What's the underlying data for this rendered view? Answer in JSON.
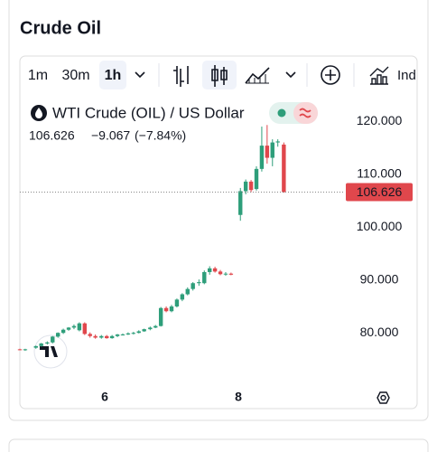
{
  "header": {
    "title": "Crude Oil"
  },
  "toolbar": {
    "intervals": [
      "1m",
      "30m",
      "1h"
    ],
    "active_interval": 2,
    "indicators": "Ind"
  },
  "chart_data": {
    "type": "candlestick",
    "title": "WTI Crude (OIL) / US Dollar",
    "last_price": 106.626,
    "change": "−9.067",
    "change_percent": "(−7.84%)",
    "x": [
      4.73,
      4.81,
      4.97,
      5.05,
      5.14,
      5.22,
      5.3,
      5.38,
      5.46,
      5.54,
      5.62,
      5.7,
      5.78,
      5.86,
      5.95,
      6.03,
      6.11,
      6.19,
      6.27,
      6.35,
      6.43,
      6.51,
      6.59,
      6.68,
      6.76,
      6.84,
      6.92,
      7.0,
      7.08,
      7.16,
      7.24,
      7.32,
      7.41,
      7.49,
      7.57,
      7.65,
      7.73,
      7.81,
      7.89,
      8.03,
      8.11,
      8.19,
      8.27,
      8.35,
      8.43,
      8.51,
      8.59,
      8.68
    ],
    "open": [
      76.9,
      76.8,
      77.2,
      77.5,
      78.0,
      78.2,
      79.3,
      80.0,
      80.6,
      81.0,
      80.5,
      81.8,
      79.8,
      79.4,
      79.1,
      79.4,
      79.0,
      79.4,
      79.7,
      79.7,
      79.9,
      80.0,
      80.3,
      80.7,
      81.0,
      81.3,
      84.7,
      84.1,
      85.0,
      86.3,
      87.3,
      88.3,
      89.4,
      89.4,
      91.5,
      92.2,
      91.6,
      91.1,
      91.2,
      102.3,
      106.8,
      108.6,
      107.2,
      111.0,
      115.4,
      113.1,
      116.0,
      115.6
    ],
    "high": [
      77.0,
      77.0,
      77.6,
      78.1,
      78.4,
      79.4,
      80.1,
      80.8,
      81.1,
      81.6,
      82.0,
      82.0,
      80.1,
      79.7,
      79.6,
      79.6,
      79.6,
      79.8,
      79.9,
      80.1,
      80.2,
      80.5,
      80.8,
      81.2,
      81.5,
      84.9,
      85.0,
      85.3,
      86.5,
      87.5,
      88.6,
      89.6,
      90.1,
      91.8,
      92.6,
      92.5,
      91.9,
      91.5,
      91.4,
      107.4,
      109.0,
      108.9,
      111.5,
      119.0,
      119.3,
      116.6,
      116.6,
      116.0
    ],
    "low": [
      76.7,
      76.6,
      77.0,
      77.4,
      77.8,
      78.0,
      79.1,
      79.8,
      80.4,
      80.7,
      80.3,
      79.6,
      79.1,
      78.9,
      78.9,
      78.9,
      78.9,
      79.2,
      79.5,
      79.6,
      79.7,
      79.9,
      80.2,
      80.5,
      80.9,
      81.2,
      83.9,
      83.9,
      84.8,
      86.0,
      87.1,
      88.0,
      88.9,
      89.2,
      91.0,
      91.4,
      90.9,
      90.8,
      90.9,
      101.2,
      106.2,
      106.6,
      106.9,
      110.5,
      112.0,
      111.5,
      115.2,
      106.5
    ],
    "close": [
      76.8,
      76.9,
      77.5,
      78.0,
      78.2,
      79.3,
      80.0,
      80.6,
      81.0,
      81.3,
      81.8,
      79.8,
      79.4,
      79.1,
      79.4,
      79.0,
      79.4,
      79.7,
      79.7,
      79.9,
      80.0,
      80.3,
      80.7,
      81.0,
      81.3,
      84.7,
      84.1,
      85.0,
      86.3,
      87.3,
      88.3,
      89.4,
      89.6,
      91.5,
      92.2,
      91.6,
      91.1,
      91.2,
      91.0,
      106.8,
      108.6,
      107.0,
      111.0,
      115.4,
      113.1,
      116.0,
      116.2,
      106.626
    ],
    "xlim": [
      4.73,
      9.54
    ],
    "xticks": [
      6,
      8
    ],
    "ylim": [
      70.3,
      125.5
    ],
    "yticks": [
      {
        "value": 80,
        "label": "80.000"
      },
      {
        "value": 90,
        "label": "90.000"
      },
      {
        "value": 100,
        "label": "100.000"
      },
      {
        "value": 110,
        "label": "110.000"
      },
      {
        "value": 120,
        "label": "120.000"
      }
    ],
    "up_color": "#2e9e7a",
    "down_color": "#e0474c",
    "grid": false
  }
}
